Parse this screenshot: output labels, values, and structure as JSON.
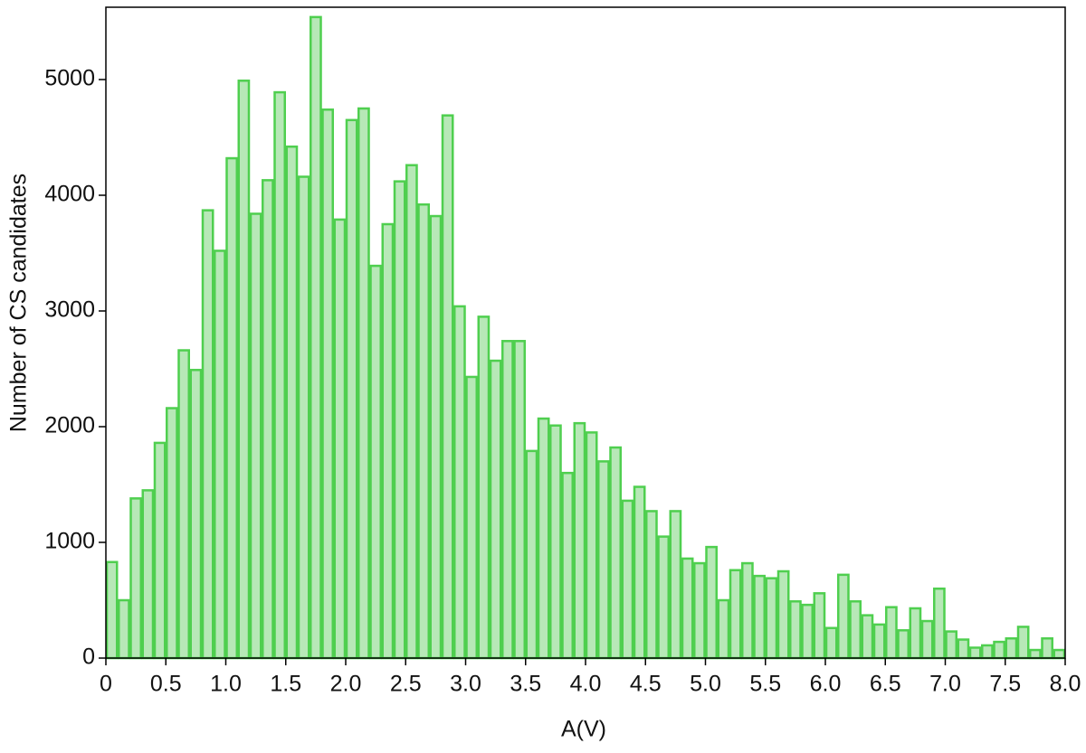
{
  "chart_data": {
    "type": "histogram",
    "xlabel": "A(V)",
    "ylabel": "Number of CS candidates",
    "bins": [
      0,
      0.1,
      0.2,
      0.3,
      0.4,
      0.5,
      0.6,
      0.7,
      0.8,
      0.9,
      1,
      1.1,
      1.2,
      1.3,
      1.4,
      1.5,
      1.6,
      1.7,
      1.8,
      1.9,
      2,
      2.1,
      2.2,
      2.3,
      2.4,
      2.5,
      2.6,
      2.7,
      2.8,
      2.9,
      3,
      3.1,
      3.2,
      3.3,
      3.4,
      3.5,
      3.6,
      3.7,
      3.8,
      3.9,
      4,
      4.1,
      4.2,
      4.3,
      4.4,
      4.5,
      4.6,
      4.7,
      4.8,
      4.9,
      5,
      5.1,
      5.2,
      5.3,
      5.4,
      5.5,
      5.6,
      5.7,
      5.8,
      5.9,
      6,
      6.1,
      6.2,
      6.3,
      6.4,
      6.5,
      6.6,
      6.7,
      6.8,
      6.9,
      7,
      7.1,
      7.2,
      7.3,
      7.4,
      7.5,
      7.6,
      7.7,
      7.8,
      7.9,
      8
    ],
    "values": [
      830,
      500,
      1380,
      1450,
      1860,
      2160,
      2660,
      2490,
      3870,
      3520,
      4320,
      4990,
      3840,
      4130,
      4890,
      4420,
      4160,
      5540,
      4740,
      3790,
      4650,
      4750,
      3390,
      3750,
      4120,
      4260,
      3920,
      3820,
      4690,
      3040,
      2430,
      2950,
      2570,
      2740,
      2740,
      1790,
      2070,
      2010,
      1600,
      2030,
      1950,
      1700,
      1820,
      1360,
      1480,
      1270,
      1050,
      1270,
      860,
      820,
      960,
      500,
      760,
      820,
      710,
      690,
      750,
      490,
      460,
      560,
      260,
      720,
      490,
      370,
      290,
      440,
      240,
      430,
      320,
      600,
      230,
      160,
      90,
      110,
      140,
      170,
      270,
      70,
      170,
      70
    ],
    "color": "#b7e8b7",
    "edgecolor": "#4fcf4f",
    "xlim": [
      0,
      8
    ],
    "ylim": [
      0,
      5625
    ],
    "xticks": [
      0,
      0.5,
      {
        "value": 1,
        "label": "1.0"
      },
      1.5,
      {
        "value": 2,
        "label": "2.0"
      },
      2.5,
      {
        "value": 3,
        "label": "3.0"
      },
      3.5,
      {
        "value": 4,
        "label": "4.0"
      },
      4.5,
      {
        "value": 5,
        "label": "5.0"
      },
      5.5,
      {
        "value": 6,
        "label": "6.0"
      },
      6.5,
      {
        "value": 7,
        "label": "7.0"
      },
      7.5,
      {
        "value": 8,
        "label": "8.0"
      }
    ],
    "yticks": [
      0,
      1000,
      2000,
      3000,
      4000,
      5000
    ]
  }
}
